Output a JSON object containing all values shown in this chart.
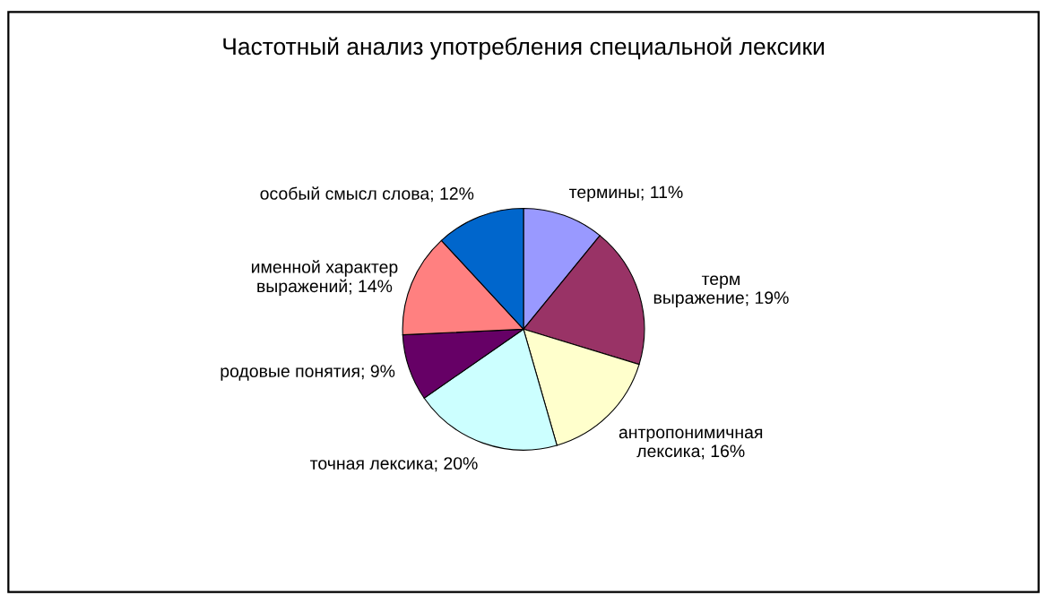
{
  "chart_data": {
    "type": "pie",
    "title": "Частотный анализ употребления специальной лексики",
    "categories": [
      "термины",
      "терм\nвыражение",
      "антропонимичная\nлексика",
      "точная лексика",
      "родовые понятия",
      "именной характер\nвыражений",
      "особый смысл слова"
    ],
    "values": [
      11,
      19,
      16,
      20,
      9,
      14,
      12
    ],
    "value_labels": [
      "11%",
      "19%",
      "16%",
      "20%",
      "9%",
      "14%",
      "12%"
    ],
    "colors": [
      "#9999ff",
      "#993366",
      "#ffffcc",
      "#ccffff",
      "#660066",
      "#ff8080",
      "#0066cc"
    ],
    "legend": false
  }
}
